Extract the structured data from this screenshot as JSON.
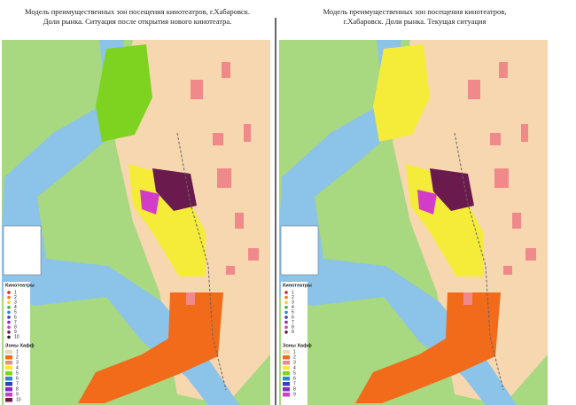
{
  "panels": [
    {
      "title": [
        "Модель преимущественных зон посещения кинотеатров, г.Хабаровск.",
        "Доли рынка. Ситуация после открытия нового кинотеатра."
      ],
      "cinemas_heading": "Кинотеатры",
      "cinemas": [
        "1",
        "2",
        "3",
        "4",
        "5",
        "6",
        "7",
        "8",
        "9",
        "10"
      ],
      "zones_heading": "Зоны Хафф",
      "zones": [
        "1",
        "2",
        "3",
        "4",
        "5",
        "6",
        "7",
        "8",
        "9",
        "10"
      ]
    },
    {
      "title": [
        "Модель преимущественных зон посещения кинотеатров,",
        "г.Хабаровск. Доли рынка. Текущая ситуация"
      ],
      "cinemas_heading": "Кинотеатры",
      "cinemas": [
        "1",
        "2",
        "3",
        "4",
        "5",
        "6",
        "7",
        "8",
        "9"
      ],
      "zones_heading": "Зоны Хафф",
      "zones": [
        "1",
        "2",
        "3",
        "4",
        "5",
        "6",
        "7",
        "8",
        "9"
      ]
    }
  ]
}
